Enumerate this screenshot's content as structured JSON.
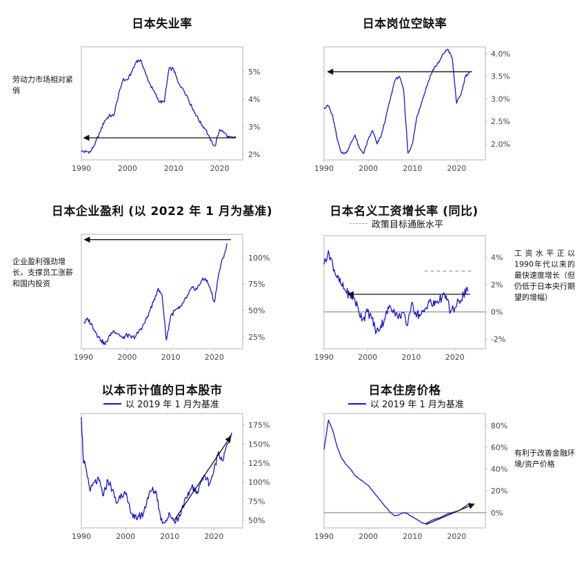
{
  "colors": {
    "series": "#1414d4",
    "frame": "#bdbdbd",
    "zero_line": "#777777",
    "arrow": "#111111",
    "target_line": "#9a9a9a"
  },
  "chart_data": [
    {
      "id": "unemployment",
      "type": "line",
      "title": "日本失业率",
      "note": "劳动力市场相对紧俏",
      "x": [
        1990,
        1991,
        1992,
        1993,
        1994,
        1995,
        1996,
        1997,
        1998,
        1999,
        2000,
        2001,
        2002,
        2003,
        2004,
        2005,
        2006,
        2007,
        2008,
        2009,
        2010,
        2011,
        2012,
        2013,
        2014,
        2015,
        2016,
        2017,
        2018,
        2019,
        2020,
        2021,
        2022,
        2023,
        2023.5
      ],
      "values": [
        2.1,
        2.1,
        2.1,
        2.4,
        2.8,
        3.2,
        3.4,
        3.4,
        4.1,
        4.7,
        4.7,
        5.0,
        5.4,
        5.4,
        4.9,
        4.5,
        4.2,
        3.9,
        3.9,
        5.1,
        5.1,
        4.6,
        4.4,
        4.1,
        3.7,
        3.4,
        3.1,
        2.9,
        2.5,
        2.3,
        2.9,
        2.8,
        2.6,
        2.6,
        2.6
      ],
      "x_ticks": [
        "1990",
        "2000",
        "2010",
        "2020"
      ],
      "y_ticks": [
        "2%",
        "3%",
        "4%",
        "5%"
      ],
      "y_tick_values": [
        2,
        3,
        4,
        5
      ],
      "xlim": [
        1990,
        2025
      ],
      "ylim": [
        1.8,
        5.9
      ],
      "arrow": {
        "from": [
          2023.5,
          2.6
        ],
        "to": [
          1990.5,
          2.6
        ]
      }
    },
    {
      "id": "job_openings",
      "type": "line",
      "title": "日本岗位空缺率",
      "x": [
        1990,
        1991,
        1992,
        1993,
        1994,
        1995,
        1996,
        1997,
        1998,
        1999,
        2000,
        2001,
        2002,
        2003,
        2004,
        2005,
        2006,
        2007,
        2008,
        2009,
        2010,
        2011,
        2012,
        2013,
        2014,
        2015,
        2016,
        2017,
        2018,
        2019,
        2020,
        2021,
        2022,
        2023
      ],
      "values": [
        2.8,
        2.85,
        2.6,
        2.1,
        1.8,
        1.8,
        2.0,
        2.2,
        1.9,
        1.8,
        2.1,
        2.3,
        2.0,
        2.2,
        2.6,
        3.0,
        3.4,
        3.5,
        3.2,
        1.8,
        2.0,
        2.6,
        2.9,
        3.2,
        3.5,
        3.7,
        3.8,
        4.0,
        4.1,
        3.9,
        2.9,
        3.1,
        3.5,
        3.6
      ],
      "x_ticks": [
        "1990",
        "2000",
        "2010",
        "2020"
      ],
      "y_ticks": [
        "2.0%",
        "2.5%",
        "3.0%",
        "3.5%",
        "4.0%"
      ],
      "y_tick_values": [
        2.0,
        2.5,
        3.0,
        3.5,
        4.0
      ],
      "xlim": [
        1990,
        2026.5
      ],
      "ylim": [
        1.65,
        4.15
      ],
      "arrow": {
        "from": [
          2023.5,
          3.6
        ],
        "to": [
          1990.8,
          3.6
        ]
      }
    },
    {
      "id": "corporate_profits",
      "type": "line",
      "title": "日本企业盈利 (以 2022 年 1 月为基准)",
      "note": "企业盈利强劲增长，支撑员工涨薪和国内投资",
      "x": [
        1990,
        1991,
        1992,
        1993,
        1994,
        1995,
        1996,
        1997,
        1998,
        1999,
        2000,
        2001,
        2002,
        2003,
        2004,
        2005,
        2006,
        2007,
        2008,
        2009,
        2010,
        2011,
        2012,
        2013,
        2014,
        2015,
        2016,
        2017,
        2018,
        2019,
        2020,
        2021,
        2022,
        2023
      ],
      "values": [
        38,
        42,
        36,
        28,
        22,
        18,
        27,
        31,
        28,
        24,
        27,
        24,
        26,
        32,
        38,
        48,
        58,
        70,
        65,
        22,
        45,
        50,
        52,
        58,
        65,
        72,
        70,
        78,
        80,
        72,
        58,
        85,
        100,
        113
      ],
      "x_ticks": [
        "1990",
        "2000",
        "2010",
        "2020"
      ],
      "y_ticks": [
        "25%",
        "50%",
        "75%",
        "100%"
      ],
      "y_tick_values": [
        25,
        50,
        75,
        100
      ],
      "xlim": [
        1989.5,
        2026.5
      ],
      "ylim": [
        14,
        122
      ],
      "arrow": {
        "from": [
          2023.8,
          117
        ],
        "to": [
          1990.2,
          117
        ]
      }
    },
    {
      "id": "nominal_wages",
      "type": "line",
      "title": "日本名义工资增长率 (同比)",
      "legend": "政策目标通胀水平",
      "note": "工资水平正以1990年代以来的最快速度增长（但仍低于日本央行期望的增幅）",
      "x": [
        1990,
        1991,
        1992,
        1993,
        1994,
        1995,
        1996,
        1997,
        1998,
        1999,
        2000,
        2001,
        2002,
        2003,
        2004,
        2005,
        2006,
        2007,
        2008,
        2009,
        2010,
        2011,
        2012,
        2013,
        2014,
        2015,
        2016,
        2017,
        2018,
        2019,
        2020,
        2021,
        2022,
        2023
      ],
      "values": [
        3.5,
        4.5,
        3.5,
        2.5,
        2.0,
        1.5,
        1.2,
        1.0,
        0.0,
        -0.5,
        0.0,
        -0.5,
        -1.5,
        -1.0,
        -0.5,
        0.5,
        0.2,
        -0.5,
        0.0,
        -1.0,
        0.5,
        0.0,
        -0.3,
        0.0,
        0.8,
        0.5,
        0.8,
        1.0,
        1.2,
        0.0,
        0.3,
        0.8,
        1.3,
        1.5
      ],
      "x_ticks": [
        "1990",
        "2000",
        "2010",
        "2020"
      ],
      "y_ticks": [
        "-2%",
        "0%",
        "2%",
        "4%"
      ],
      "y_tick_values": [
        -2,
        0,
        2,
        4
      ],
      "xlim": [
        1990,
        2027
      ],
      "ylim": [
        -2.7,
        5.6
      ],
      "target": {
        "value": 3,
        "from": 2013,
        "to": 2024
      },
      "arrow": {
        "from": [
          2023.5,
          1.3
        ],
        "to": [
          1995.5,
          1.3
        ]
      }
    },
    {
      "id": "stock_market",
      "type": "line",
      "title": "以本币计值的日本股市",
      "legend": "以 2019 年 1 月为基准",
      "x": [
        1990,
        1990.5,
        1991,
        1992,
        1993,
        1994,
        1995,
        1996,
        1997,
        1998,
        1999,
        2000,
        2001,
        2002,
        2003,
        2004,
        2005,
        2006,
        2007,
        2008,
        2009,
        2010,
        2011,
        2012,
        2013,
        2014,
        2015,
        2016,
        2017,
        2018,
        2019,
        2020,
        2021,
        2022,
        2023,
        2024
      ],
      "values": [
        185,
        125,
        120,
        88,
        100,
        102,
        82,
        103,
        90,
        72,
        85,
        84,
        65,
        52,
        55,
        58,
        80,
        90,
        86,
        50,
        48,
        58,
        50,
        52,
        70,
        80,
        95,
        85,
        100,
        108,
        98,
        115,
        140,
        128,
        150,
        165
      ],
      "x_ticks": [
        "1990",
        "2000",
        "2010",
        "2020"
      ],
      "y_ticks": [
        "50%",
        "75%",
        "100%",
        "125%",
        "150%",
        "175%"
      ],
      "y_tick_values": [
        50,
        75,
        100,
        125,
        150,
        175
      ],
      "xlim": [
        1990,
        2026.5
      ],
      "ylim": [
        40,
        190
      ],
      "arrow": {
        "from": [
          2011,
          50
        ],
        "to": [
          2023.8,
          160
        ]
      }
    },
    {
      "id": "housing_prices",
      "type": "line",
      "title": "日本住房价格",
      "legend": "以 2019 年 1 月为基准",
      "note": "有利于改善金融环境/资产价格",
      "x": [
        1990,
        1991,
        1992,
        1993,
        1994,
        1995,
        1996,
        1997,
        1998,
        1999,
        2000,
        2001,
        2002,
        2003,
        2004,
        2005,
        2006,
        2007,
        2008,
        2009,
        2010,
        2011,
        2012,
        2013,
        2014,
        2015,
        2016,
        2017,
        2018,
        2019,
        2020,
        2021,
        2022,
        2023
      ],
      "values": [
        58,
        85,
        75,
        60,
        50,
        44,
        40,
        34,
        31,
        28,
        25,
        20,
        15,
        10,
        5,
        0,
        -3,
        -2,
        0,
        -1,
        -4,
        -6,
        -9,
        -10,
        -8,
        -6,
        -5,
        -3,
        -1,
        0,
        1,
        3,
        6,
        9
      ],
      "x_ticks": [
        "1990",
        "2000",
        "2010",
        "2020"
      ],
      "y_ticks": [
        "0%",
        "20%",
        "40%",
        "60%",
        "80%"
      ],
      "y_tick_values": [
        0,
        20,
        40,
        60,
        80
      ],
      "xlim": [
        1990,
        2026.5
      ],
      "ylim": [
        -14,
        91
      ],
      "arrow": {
        "from": [
          2013,
          -11
        ],
        "to": [
          2024,
          8
        ]
      }
    }
  ]
}
